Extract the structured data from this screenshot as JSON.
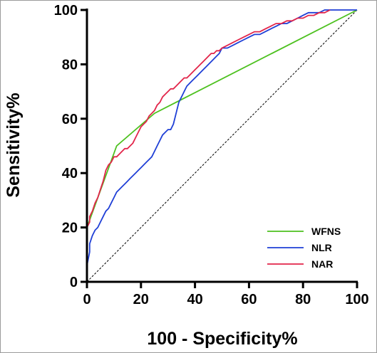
{
  "chart_data": {
    "type": "line",
    "title": "",
    "xlabel": "100 - Specificity%",
    "ylabel": "Sensitivity%",
    "xlim": [
      0,
      100
    ],
    "ylim": [
      0,
      100
    ],
    "x_ticks": [
      "0",
      "20",
      "40",
      "60",
      "80",
      "100"
    ],
    "y_ticks": [
      "0",
      "20",
      "40",
      "60",
      "80",
      "100"
    ],
    "legend_position": "bottom-right",
    "reference_line": {
      "x": [
        0,
        100
      ],
      "y": [
        0,
        100
      ],
      "style": "dashed",
      "color": "#000000"
    },
    "series": [
      {
        "name": "WFNS",
        "color": "#4dc11f",
        "x": [
          0,
          0,
          11,
          25,
          100
        ],
        "y": [
          0,
          20,
          50,
          62,
          100
        ]
      },
      {
        "name": "NLR",
        "color": "#1f3fd6",
        "x": [
          0,
          0,
          1,
          1,
          2,
          3,
          4,
          5,
          6,
          7,
          8,
          9,
          10,
          11,
          12,
          13,
          14,
          15,
          16,
          17,
          18,
          19,
          20,
          21,
          22,
          23,
          24,
          25,
          26,
          27,
          28,
          29,
          30,
          31,
          32,
          33,
          34,
          35,
          36,
          37,
          38,
          39,
          40,
          41,
          42,
          43,
          44,
          45,
          46,
          47,
          48,
          49,
          50,
          52,
          54,
          56,
          58,
          60,
          62,
          64,
          66,
          68,
          70,
          72,
          74,
          76,
          78,
          80,
          82,
          84,
          86,
          88,
          90,
          92,
          94,
          96,
          98,
          100
        ],
        "y": [
          0,
          6,
          11,
          14,
          17,
          19,
          20,
          22,
          24,
          26,
          27,
          29,
          31,
          33,
          34,
          35,
          36,
          37,
          38,
          39,
          40,
          41,
          42,
          43,
          44,
          45,
          46,
          48,
          50,
          52,
          54,
          55,
          56,
          56,
          58,
          62,
          66,
          68,
          70,
          72,
          73,
          74,
          75,
          76,
          77,
          78,
          79,
          80,
          81,
          82,
          83,
          84,
          86,
          86,
          87,
          88,
          89,
          90,
          91,
          91,
          92,
          93,
          94,
          95,
          95,
          96,
          97,
          98,
          99,
          99,
          99,
          100,
          100,
          100,
          100,
          100,
          100,
          100
        ]
      },
      {
        "name": "NAR",
        "color": "#e2254a",
        "x": [
          0,
          0,
          1,
          1,
          2,
          3,
          4,
          5,
          6,
          7,
          8,
          9,
          10,
          11,
          12,
          13,
          14,
          15,
          16,
          17,
          18,
          19,
          20,
          21,
          22,
          23,
          24,
          25,
          26,
          27,
          28,
          29,
          30,
          31,
          32,
          33,
          34,
          35,
          36,
          37,
          38,
          39,
          40,
          41,
          42,
          43,
          44,
          45,
          46,
          47,
          48,
          49,
          50,
          52,
          54,
          56,
          58,
          60,
          62,
          64,
          66,
          68,
          70,
          72,
          74,
          76,
          78,
          80,
          82,
          84,
          86,
          88,
          90
        ],
        "y": [
          0,
          20,
          22,
          24,
          26,
          29,
          31,
          34,
          37,
          41,
          43,
          44,
          46,
          46,
          47,
          48,
          49,
          49,
          50,
          51,
          53,
          55,
          57,
          58,
          59,
          61,
          62,
          63,
          65,
          66,
          68,
          69,
          70,
          71,
          71,
          72,
          73,
          74,
          75,
          75,
          76,
          77,
          78,
          79,
          80,
          81,
          82,
          83,
          84,
          84,
          85,
          85,
          86,
          87,
          88,
          89,
          90,
          91,
          92,
          92,
          93,
          94,
          95,
          95,
          96,
          96,
          97,
          97,
          98,
          98,
          99,
          99,
          100
        ]
      }
    ]
  }
}
